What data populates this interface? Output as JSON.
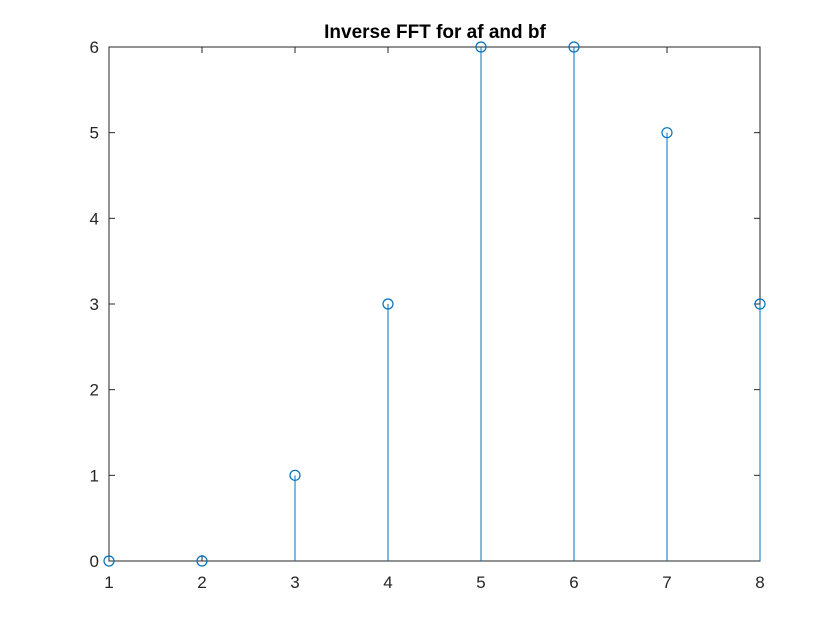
{
  "chart_data": {
    "type": "stem",
    "title": "Inverse FFT for af and bf",
    "xlabel": "",
    "ylabel": "",
    "x": [
      1,
      2,
      3,
      4,
      5,
      6,
      7,
      8
    ],
    "series": [
      {
        "values": [
          0,
          0,
          1,
          3,
          6,
          6,
          5,
          3
        ]
      }
    ],
    "xlim": [
      1,
      8
    ],
    "ylim": [
      0,
      6
    ],
    "xticks": [
      "1",
      "2",
      "3",
      "4",
      "5",
      "6",
      "7",
      "8"
    ],
    "yticks": [
      "0",
      "1",
      "2",
      "3",
      "4",
      "5",
      "6"
    ],
    "grid": false,
    "legend": "none",
    "marker": "open-circle",
    "colors": {
      "series": "#0072BD",
      "axes": "#262626",
      "background": "#ffffff"
    }
  }
}
